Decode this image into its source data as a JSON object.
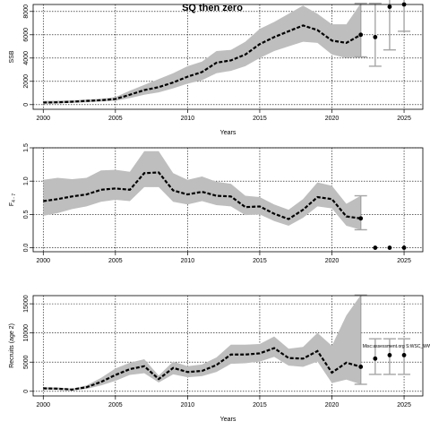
{
  "figure": {
    "title": "SQ then zero"
  },
  "chart_data": [
    {
      "type": "line",
      "ylabel": "SSB",
      "xlabel": "Years",
      "xlim": [
        1999.3,
        2026.3
      ],
      "ylim": [
        -400,
        8600
      ],
      "xticks": [
        2000,
        2005,
        2010,
        2015,
        2020,
        2025
      ],
      "yticks": [
        0,
        2000,
        4000,
        6000,
        8000
      ],
      "x": [
        2000,
        2001,
        2002,
        2003,
        2004,
        2005,
        2006,
        2007,
        2008,
        2009,
        2010,
        2011,
        2012,
        2013,
        2014,
        2015,
        2016,
        2017,
        2018,
        2019,
        2020,
        2021,
        2022
      ],
      "median": [
        180,
        200,
        250,
        320,
        380,
        480,
        850,
        1250,
        1500,
        1900,
        2400,
        2800,
        3600,
        3800,
        4300,
        5200,
        5800,
        6300,
        6800,
        6400,
        5500,
        5300,
        6000
      ],
      "lower": [
        80,
        100,
        150,
        200,
        260,
        330,
        560,
        850,
        1050,
        1400,
        1800,
        2100,
        2700,
        2900,
        3300,
        4000,
        4600,
        5000,
        5400,
        5300,
        4300,
        4000,
        4100
      ],
      "upper": [
        320,
        340,
        370,
        440,
        500,
        650,
        1200,
        1700,
        2200,
        2700,
        3300,
        3700,
        4600,
        4700,
        5400,
        6500,
        7100,
        7800,
        8500,
        7800,
        6900,
        6900,
        8700
      ],
      "projection": {
        "x": [
          2023,
          2024,
          2025
        ],
        "median": [
          5800,
          8400,
          9200
        ],
        "lower": [
          3300,
          4700,
          6300
        ],
        "upper": [
          8700,
          9200,
          9200
        ]
      },
      "whisker_2022": {
        "x": 2022,
        "lower": 4100,
        "upper": 8700
      }
    },
    {
      "type": "line",
      "ylabel": "F",
      "ylabel_sub": "4 - 7",
      "xlabel": "",
      "xlim": [
        1999.3,
        2026.3
      ],
      "ylim": [
        -0.06,
        1.5
      ],
      "xticks": [
        2000,
        2005,
        2010,
        2015,
        2020,
        2025
      ],
      "yticks": [
        0.0,
        0.5,
        1.0,
        1.5
      ],
      "ytick_labels": [
        "0.0",
        "0.5",
        "1.0",
        "1.5"
      ],
      "x": [
        2000,
        2001,
        2002,
        2003,
        2004,
        2005,
        2006,
        2007,
        2008,
        2009,
        2010,
        2011,
        2012,
        2013,
        2014,
        2015,
        2016,
        2017,
        2018,
        2019,
        2020,
        2021,
        2022
      ],
      "median": [
        0.7,
        0.73,
        0.77,
        0.8,
        0.87,
        0.89,
        0.87,
        1.12,
        1.13,
        0.86,
        0.8,
        0.84,
        0.78,
        0.77,
        0.61,
        0.62,
        0.51,
        0.43,
        0.57,
        0.76,
        0.73,
        0.47,
        0.44
      ],
      "lower": [
        0.48,
        0.52,
        0.58,
        0.62,
        0.69,
        0.72,
        0.7,
        0.91,
        0.91,
        0.69,
        0.65,
        0.7,
        0.64,
        0.62,
        0.49,
        0.5,
        0.4,
        0.33,
        0.45,
        0.62,
        0.59,
        0.33,
        0.27
      ],
      "upper": [
        1.02,
        1.05,
        1.03,
        1.05,
        1.16,
        1.17,
        1.14,
        1.45,
        1.45,
        1.12,
        1.02,
        1.07,
        0.99,
        0.96,
        0.78,
        0.76,
        0.65,
        0.57,
        0.73,
        0.98,
        0.93,
        0.66,
        0.78
      ],
      "projection": {
        "x": [
          2023,
          2024,
          2025
        ],
        "median": [
          0.0,
          0.0,
          0.0
        ]
      },
      "whisker_2022": {
        "x": 2022,
        "lower": 0.27,
        "upper": 0.78
      }
    },
    {
      "type": "line",
      "ylabel": "Recruits (age 2)",
      "xlabel": "Years",
      "xlim": [
        1999.3,
        2026.3
      ],
      "ylim": [
        -800,
        16400
      ],
      "xticks": [
        2000,
        2005,
        2010,
        2015,
        2020,
        2025
      ],
      "yticks": [
        0,
        5000,
        10000,
        15000
      ],
      "x": [
        2000,
        2001,
        2002,
        2003,
        2004,
        2005,
        2006,
        2007,
        2008,
        2009,
        2010,
        2011,
        2012,
        2013,
        2014,
        2015,
        2016,
        2017,
        2018,
        2019,
        2020,
        2021,
        2022
      ],
      "median": [
        500,
        450,
        300,
        700,
        1600,
        2800,
        3800,
        4300,
        2100,
        4000,
        3300,
        3500,
        4500,
        6300,
        6300,
        6500,
        7400,
        5700,
        5600,
        6900,
        3200,
        4900,
        4200
      ],
      "lower": [
        300,
        250,
        150,
        400,
        1000,
        1800,
        2800,
        3100,
        1500,
        2900,
        2400,
        2600,
        3300,
        4700,
        4800,
        5100,
        5900,
        4400,
        4200,
        5100,
        1400,
        2000,
        1200
      ],
      "upper": [
        700,
        650,
        450,
        1000,
        2300,
        3900,
        4900,
        5500,
        2700,
        5100,
        4300,
        4600,
        5800,
        8000,
        8000,
        8100,
        9400,
        7300,
        7600,
        10000,
        7800,
        13000,
        16500
      ],
      "projection": {
        "x": [
          2023,
          2024,
          2025
        ],
        "median": [
          5600,
          6200,
          6200
        ],
        "lower": [
          2900,
          2900,
          2900
        ],
        "upper": [
          9000,
          9000,
          9000
        ]
      },
      "whisker_2022": {
        "x": 2022,
        "lower": 1200,
        "upper": 16500
      },
      "annotation": {
        "x": 2022,
        "y": 7500,
        "text": "Misc:assessment.org S:WSC_WWWW023wwr2, r17284, pill:ec2c3c0c5ade"
      }
    }
  ],
  "colors": {
    "band": "#bebebe",
    "median_line": "#000000",
    "whisker": "#a6a6a6",
    "point": "#000000",
    "grid": "#000000"
  }
}
